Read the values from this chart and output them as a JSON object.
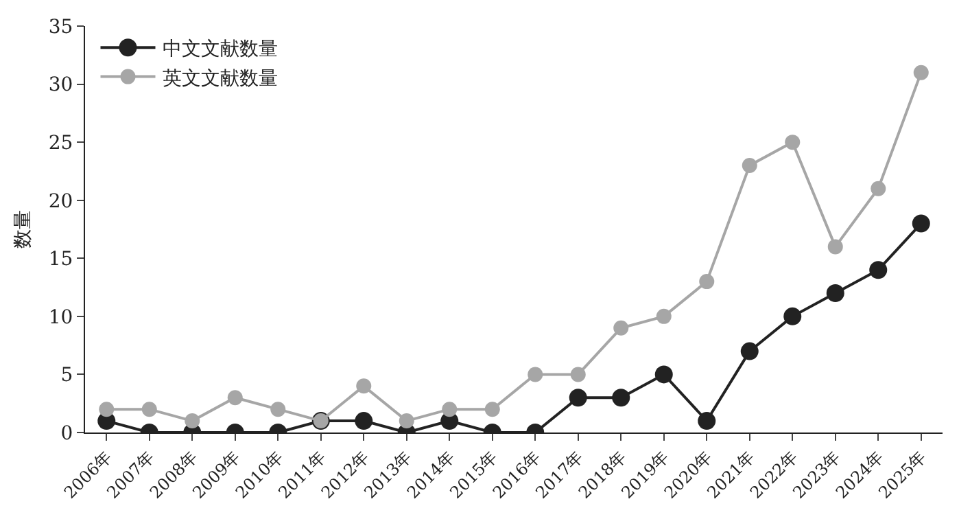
{
  "chart_data": {
    "type": "line",
    "ylabel": "数量",
    "categories": [
      "2006年",
      "2007年",
      "2008年",
      "2009年",
      "2010年",
      "2011年",
      "2012年",
      "2013年",
      "2014年",
      "2015年",
      "2016年",
      "2017年",
      "2018年",
      "2019年",
      "2020年",
      "2021年",
      "2022年",
      "2023年",
      "2024年",
      "2025年"
    ],
    "series": [
      {
        "name": "中文文献数量",
        "color": "#222222",
        "values": [
          1,
          0,
          0,
          0,
          0,
          1,
          1,
          0,
          1,
          0,
          0,
          3,
          3,
          5,
          1,
          7,
          10,
          12,
          14,
          18
        ]
      },
      {
        "name": "英文文献数量",
        "color": "#a6a6a6",
        "values": [
          2,
          2,
          1,
          3,
          2,
          1,
          4,
          1,
          2,
          2,
          5,
          5,
          9,
          10,
          13,
          23,
          25,
          16,
          21,
          31
        ]
      }
    ],
    "ylim": [
      0,
      35
    ],
    "yticks": [
      0,
      5,
      10,
      15,
      20,
      25,
      30,
      35
    ],
    "grid": false,
    "legend": "top left",
    "marker": "circle",
    "line_style": "solid"
  }
}
